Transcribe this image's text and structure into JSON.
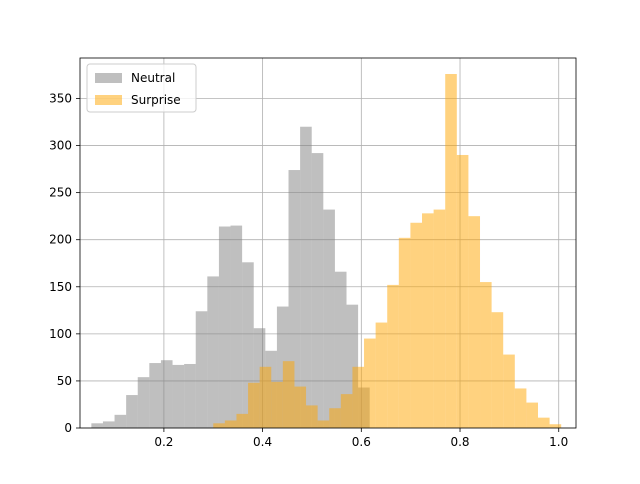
{
  "chart_data": {
    "type": "bar",
    "subtype": "overlapping-histogram",
    "title": "",
    "xlabel": "",
    "ylabel": "",
    "xlim": [
      0.03,
      1.035
    ],
    "ylim": [
      0,
      393
    ],
    "xticks": [
      0.2,
      0.4,
      0.6,
      0.8,
      1.0
    ],
    "xtick_labels": [
      "0.2",
      "0.4",
      "0.6",
      "0.8",
      "1.0"
    ],
    "yticks": [
      0,
      50,
      100,
      150,
      200,
      250,
      300,
      350
    ],
    "ytick_labels": [
      "0",
      "50",
      "100",
      "150",
      "200",
      "250",
      "300",
      "350"
    ],
    "grid": true,
    "legend": {
      "position": "upper left",
      "entries": [
        "Neutral",
        "Surprise"
      ]
    },
    "series": [
      {
        "name": "Neutral",
        "color": "#808080",
        "opacity": 0.5,
        "bin_edges": [
          0.053,
          0.0765,
          0.1,
          0.1235,
          0.147,
          0.1705,
          0.194,
          0.2175,
          0.241,
          0.2645,
          0.288,
          0.3115,
          0.335,
          0.3585,
          0.382,
          0.4055,
          0.429,
          0.4525,
          0.476,
          0.4995,
          0.523,
          0.5465,
          0.57,
          0.5935,
          0.617
        ],
        "counts": [
          5,
          7,
          14,
          35,
          54,
          69,
          72,
          67,
          68,
          124,
          161,
          214,
          215,
          176,
          106,
          82,
          129,
          274,
          320,
          292,
          232,
          166,
          131,
          43
        ]
      },
      {
        "name": "Surprise",
        "color": "#FFA500",
        "opacity": 0.5,
        "bin_edges": [
          0.3,
          0.3235,
          0.347,
          0.3705,
          0.394,
          0.4175,
          0.441,
          0.4645,
          0.488,
          0.5115,
          0.535,
          0.5585,
          0.582,
          0.6055,
          0.629,
          0.6525,
          0.676,
          0.6995,
          0.723,
          0.7465,
          0.77,
          0.7935,
          0.817,
          0.8405,
          0.864,
          0.8875,
          0.911,
          0.9345,
          0.958,
          0.9815,
          1.005
        ],
        "counts": [
          5,
          8,
          15,
          48,
          65,
          49,
          71,
          44,
          24,
          8,
          21,
          36,
          65,
          95,
          112,
          152,
          202,
          218,
          228,
          232,
          376,
          290,
          225,
          155,
          123,
          78,
          42,
          27,
          11,
          4
        ]
      }
    ]
  }
}
